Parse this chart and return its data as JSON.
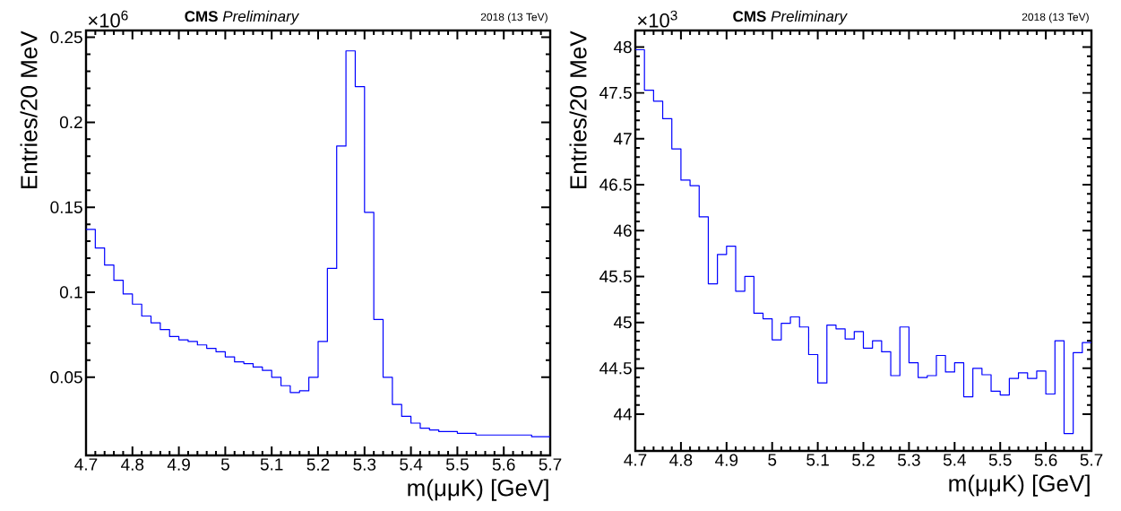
{
  "chart_data": [
    {
      "type": "histogram",
      "title": "**CMS** *Preliminary*",
      "subtitle": "2018 (13 TeV)",
      "annotations": [
        "×10$^{6}$"
      ],
      "xlabel": "m(μμK) [GeV]",
      "ylabel": "Entries/20 MeV",
      "color": "#0000ff",
      "bins": [
        4.7,
        4.72,
        4.74,
        4.76,
        4.78,
        4.8,
        4.82,
        4.84,
        4.86,
        4.88,
        4.9,
        4.92,
        4.94,
        4.96,
        4.98,
        5.0,
        5.02,
        5.04,
        5.06,
        5.08,
        5.1,
        5.12,
        5.14,
        5.16,
        5.18,
        5.2,
        5.22,
        5.24,
        5.26,
        5.28,
        5.3,
        5.32,
        5.34,
        5.36,
        5.38,
        5.4,
        5.42,
        5.44,
        5.46,
        5.48,
        5.5,
        5.52,
        5.54,
        5.56,
        5.58,
        5.6,
        5.62,
        5.64,
        5.66,
        5.68,
        5.7
      ],
      "values": [
        0.137,
        0.126,
        0.116,
        0.107,
        0.099,
        0.093,
        0.086,
        0.082,
        0.078,
        0.074,
        0.072,
        0.071,
        0.069,
        0.067,
        0.065,
        0.062,
        0.059,
        0.058,
        0.056,
        0.054,
        0.05,
        0.045,
        0.041,
        0.042,
        0.05,
        0.071,
        0.114,
        0.186,
        0.242,
        0.221,
        0.147,
        0.084,
        0.05,
        0.034,
        0.027,
        0.023,
        0.02,
        0.019,
        0.018,
        0.018,
        0.017,
        0.017,
        0.016,
        0.016,
        0.016,
        0.016,
        0.016,
        0.016,
        0.015,
        0.015
      ],
      "xlim": [
        4.7,
        5.7
      ],
      "ylim": [
        0.004,
        0.254
      ],
      "xticks": [
        4.7,
        4.8,
        4.9,
        5,
        5.1,
        5.2,
        5.3,
        5.4,
        5.5,
        5.6,
        5.7
      ],
      "yticks": [
        0.05,
        0.1,
        0.15,
        0.2,
        0.25
      ]
    },
    {
      "type": "histogram",
      "title": "**CMS** *Preliminary*",
      "subtitle": "2018 (13 TeV)",
      "annotations": [
        "×10$^{3}$"
      ],
      "xlabel": "m(μμK) [GeV]",
      "ylabel": "Entries/20 MeV",
      "color": "#0000ff",
      "bins": [
        4.7,
        4.72,
        4.74,
        4.76,
        4.78,
        4.8,
        4.82,
        4.84,
        4.86,
        4.88,
        4.9,
        4.92,
        4.94,
        4.96,
        4.98,
        5.0,
        5.02,
        5.04,
        5.06,
        5.08,
        5.1,
        5.12,
        5.14,
        5.16,
        5.18,
        5.2,
        5.22,
        5.24,
        5.26,
        5.28,
        5.3,
        5.32,
        5.34,
        5.36,
        5.38,
        5.4,
        5.42,
        5.44,
        5.46,
        5.48,
        5.5,
        5.52,
        5.54,
        5.56,
        5.58,
        5.6,
        5.62,
        5.64,
        5.66,
        5.68,
        5.7
      ],
      "values": [
        47.97,
        47.53,
        47.41,
        47.22,
        46.89,
        46.55,
        46.49,
        46.15,
        45.42,
        45.74,
        45.83,
        45.34,
        45.5,
        45.1,
        45.04,
        44.81,
        44.99,
        45.06,
        44.95,
        44.65,
        44.34,
        44.97,
        44.93,
        44.82,
        44.9,
        44.72,
        44.8,
        44.68,
        44.42,
        44.95,
        44.56,
        44.4,
        44.42,
        44.64,
        44.46,
        44.56,
        44.19,
        44.5,
        44.43,
        44.25,
        44.21,
        44.39,
        44.45,
        44.39,
        44.47,
        44.22,
        44.8,
        43.79,
        44.67,
        44.78
      ],
      "xlim": [
        4.7,
        5.7
      ],
      "ylim": [
        43.6,
        48.18
      ],
      "xticks": [
        4.7,
        4.8,
        4.9,
        5,
        5.1,
        5.2,
        5.3,
        5.4,
        5.5,
        5.6,
        5.7
      ],
      "yticks": [
        44,
        44.5,
        45,
        45.5,
        46,
        46.5,
        47,
        47.5,
        48
      ]
    }
  ]
}
